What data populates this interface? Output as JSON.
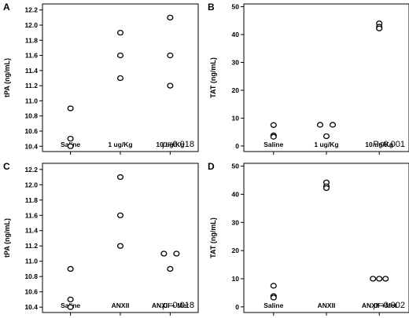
{
  "chart_data": [
    {
      "panel": "A",
      "type": "scatter",
      "ylabel": "tPA (ng/mL)",
      "categories": [
        "Saline",
        "1 ug/Kg",
        "10 ug/Kg"
      ],
      "ylim": [
        10.33,
        12.28
      ],
      "yticks": [
        "10.4",
        "10.6",
        "10.8",
        "11.0",
        "11.2",
        "11.4",
        "11.6",
        "11.8",
        "12.0",
        "12.2"
      ],
      "points": [
        {
          "cat": 0,
          "y": 10.9
        },
        {
          "cat": 0,
          "y": 10.5
        },
        {
          "cat": 0,
          "y": 10.4
        },
        {
          "cat": 1,
          "y": 11.9
        },
        {
          "cat": 1,
          "y": 11.6
        },
        {
          "cat": 1,
          "y": 11.3
        },
        {
          "cat": 2,
          "y": 12.1
        },
        {
          "cat": 2,
          "y": 11.6
        },
        {
          "cat": 2,
          "y": 11.2
        }
      ],
      "pvalue": {
        "prefix": "p",
        "text": "=0.018"
      }
    },
    {
      "panel": "B",
      "type": "scatter",
      "ylabel": "TAT (ng/mL)",
      "categories": [
        "Saline",
        "1 ug/Kg",
        "10 ug/Kg"
      ],
      "ylim": [
        -2,
        51
      ],
      "yticks": [
        "0",
        "10",
        "20",
        "30",
        "40",
        "50"
      ],
      "points": [
        {
          "cat": 0,
          "y": 7.5
        },
        {
          "cat": 0,
          "y": 3.8
        },
        {
          "cat": 0,
          "y": 3.3
        },
        {
          "cat": 1,
          "y": 7.6,
          "dx": -1
        },
        {
          "cat": 1,
          "y": 7.6,
          "dx": 1
        },
        {
          "cat": 1,
          "y": 3.5
        },
        {
          "cat": 2,
          "y": 44.0
        },
        {
          "cat": 2,
          "y": 42.8
        },
        {
          "cat": 2,
          "y": 42.2
        }
      ],
      "pvalue": {
        "prefix": "P",
        "text": "<0.001"
      }
    },
    {
      "panel": "C",
      "type": "scatter",
      "ylabel": "tPA (ng/mL)",
      "categories": [
        "Saline",
        "ANXII",
        "ANXII + Met"
      ],
      "ylim": [
        10.33,
        12.28
      ],
      "yticks": [
        "10.4",
        "10.6",
        "10.8",
        "11.0",
        "11.2",
        "11.4",
        "11.6",
        "11.8",
        "12.0",
        "12.2"
      ],
      "points": [
        {
          "cat": 0,
          "y": 10.9
        },
        {
          "cat": 0,
          "y": 10.5
        },
        {
          "cat": 0,
          "y": 10.4
        },
        {
          "cat": 1,
          "y": 12.1
        },
        {
          "cat": 1,
          "y": 11.6
        },
        {
          "cat": 1,
          "y": 11.2
        },
        {
          "cat": 2,
          "y": 11.1,
          "dx": -1
        },
        {
          "cat": 2,
          "y": 11.1,
          "dx": 1
        },
        {
          "cat": 2,
          "y": 10.9
        }
      ],
      "pvalue": {
        "prefix": "p",
        "text": "=0.018"
      }
    },
    {
      "panel": "D",
      "type": "scatter",
      "ylabel": "TAT (ng/mL)",
      "categories": [
        "Saline",
        "ANXII",
        "ANXII +Met"
      ],
      "ylim": [
        -2,
        51
      ],
      "yticks": [
        "0",
        "10",
        "20",
        "30",
        "40",
        "50"
      ],
      "points": [
        {
          "cat": 0,
          "y": 7.5
        },
        {
          "cat": 0,
          "y": 3.8
        },
        {
          "cat": 0,
          "y": 3.3
        },
        {
          "cat": 1,
          "y": 44.2
        },
        {
          "cat": 1,
          "y": 42.8
        },
        {
          "cat": 1,
          "y": 42.2
        },
        {
          "cat": 2,
          "y": 10.0,
          "dx": -1
        },
        {
          "cat": 2,
          "y": 10.0,
          "dx": 0
        },
        {
          "cat": 2,
          "y": 10.0,
          "dx": 1
        }
      ],
      "pvalue": {
        "prefix": "p",
        "text": "=0.002"
      }
    }
  ]
}
